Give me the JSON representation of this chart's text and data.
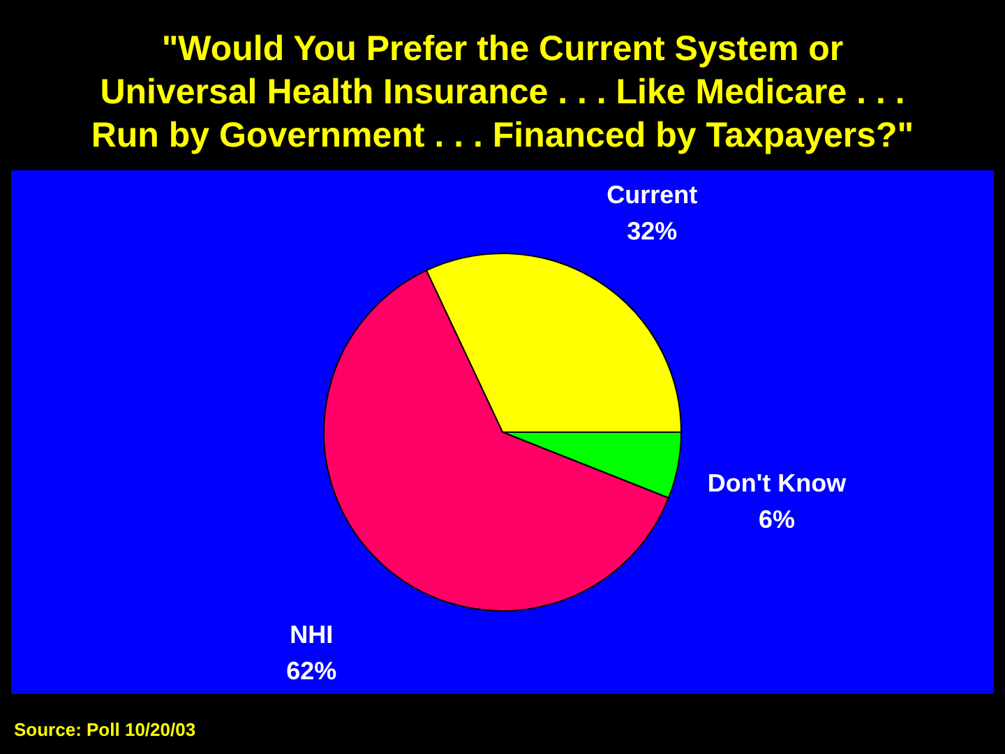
{
  "chart_data": {
    "type": "pie",
    "title": "\"Would You Prefer the Current System or\nUniversal Health Insurance . . . Like Medicare . . .\nRun by Government . . . Financed by Taxpayers?\"",
    "categories": [
      "Current",
      "Don't Know",
      "NHI"
    ],
    "values": [
      32,
      6,
      62
    ],
    "colors": [
      "#ffff00",
      "#00ff00",
      "#ff0066"
    ],
    "value_labels": [
      "32%",
      "6%",
      "62%"
    ],
    "annotations": [
      "Source: Poll 10/20/03"
    ]
  }
}
